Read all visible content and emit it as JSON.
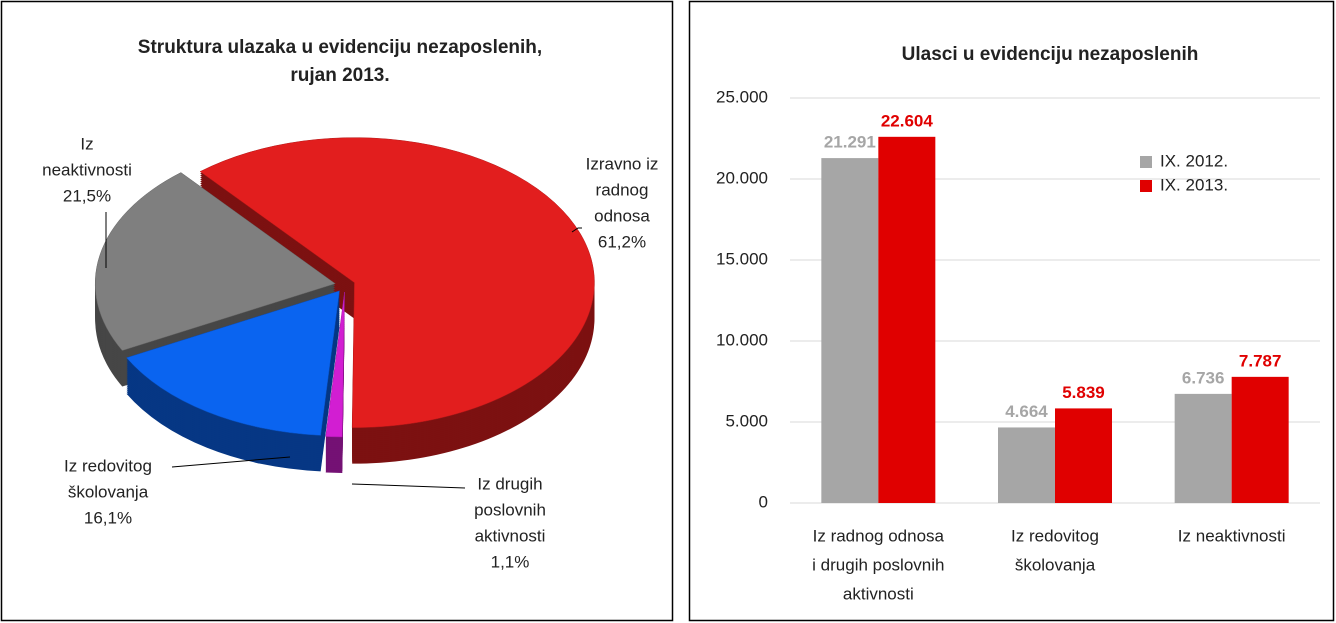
{
  "chart_data": [
    {
      "type": "pie",
      "title": [
        "Struktura ulazaka u evidenciju nezaposlenih,",
        "rujan 2013."
      ],
      "categories": [
        [
          "Izravno iz",
          "radnog",
          "odnosa"
        ],
        [
          "Iz drugih",
          "poslovnih",
          "aktivnosti"
        ],
        [
          "Iz redovitog",
          "školovanja"
        ],
        [
          "Iz",
          "neaktivnosti"
        ]
      ],
      "values": [
        61.2,
        1.1,
        16.1,
        21.5
      ],
      "value_labels": [
        "61,2%",
        "1,1%",
        "16,1%",
        "21,5%"
      ],
      "colors": [
        "#e21e1e",
        "#d21ed2",
        "#0a64f0",
        "#7f7f7f"
      ]
    },
    {
      "type": "bar",
      "title": "Ulasci u evidenciju nezaposlenih",
      "categories": [
        [
          "Iz radnog odnosa",
          "i drugih poslovnih",
          "aktivnosti"
        ],
        [
          "Iz redovitog",
          "školovanja"
        ],
        [
          "Iz neaktivnosti"
        ]
      ],
      "series": [
        {
          "name": "IX. 2012.",
          "color": "#a6a6a6",
          "values": [
            21291,
            4664,
            6736
          ],
          "value_labels": [
            "21.291",
            "4.664",
            "6.736"
          ]
        },
        {
          "name": "IX. 2013.",
          "color": "#e00000",
          "values": [
            22604,
            5839,
            7787
          ],
          "value_labels": [
            "22.604",
            "5.839",
            "7.787"
          ]
        }
      ],
      "ylim": [
        0,
        25000
      ],
      "yticks": [
        0,
        {
          "value": 5000,
          "label": "5.000"
        },
        {
          "value": 10000,
          "label": "10.000"
        },
        {
          "value": 15000,
          "label": "15.000"
        },
        {
          "value": 20000,
          "label": "20.000"
        },
        {
          "value": 25000,
          "label": "25.000"
        }
      ],
      "grid": true,
      "legend": "upper right"
    }
  ]
}
